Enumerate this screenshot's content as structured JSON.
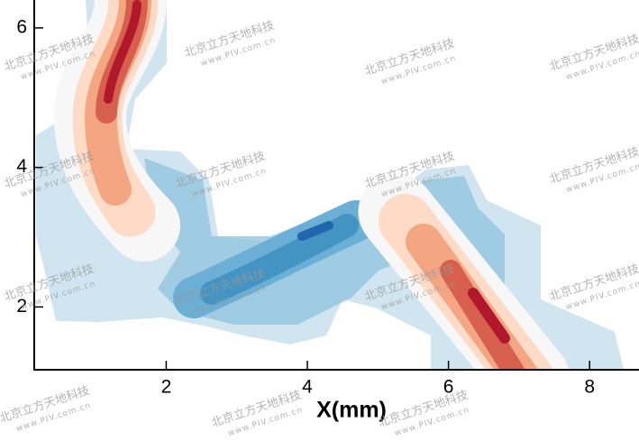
{
  "chart_data": {
    "type": "contour",
    "x_label": "X(mm)",
    "xlim": [
      0.13,
      8.7
    ],
    "ylim": [
      1.1,
      6.4
    ],
    "xticks": [
      2,
      4,
      6,
      8
    ],
    "yticks": [
      2,
      4,
      6
    ],
    "watermark": [
      "北京立方天地科技",
      "www.PIV.com.cn"
    ]
  }
}
